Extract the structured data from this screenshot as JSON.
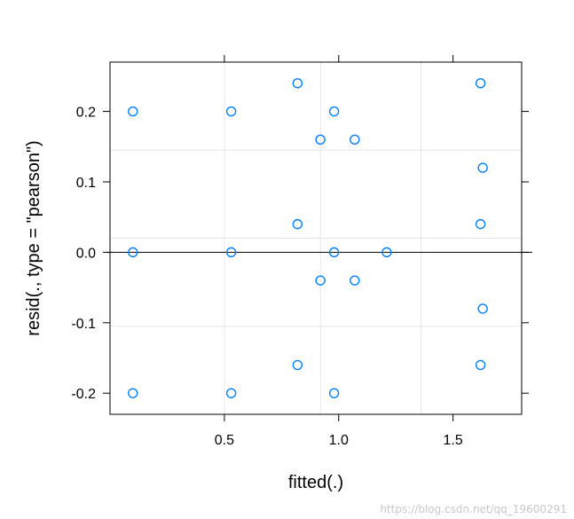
{
  "chart_data": {
    "type": "scatter",
    "title": "",
    "xlabel": "fitted(.)",
    "ylabel": "resid(., type = \"pearson\")",
    "xlim": [
      0.0,
      1.8
    ],
    "ylim": [
      -0.23,
      0.27
    ],
    "x_ticks": [
      {
        "value": 0.5,
        "label": "0.5"
      },
      {
        "value": 1.0,
        "label": "1.0"
      },
      {
        "value": 1.5,
        "label": "1.5"
      }
    ],
    "y_ticks": [
      {
        "value": -0.2,
        "label": "-0.2"
      },
      {
        "value": -0.1,
        "label": "-0.1"
      },
      {
        "value": 0.0,
        "label": "0.0"
      },
      {
        "value": 0.1,
        "label": "0.1"
      },
      {
        "value": 0.2,
        "label": "0.2"
      }
    ],
    "grid": true,
    "grid_x": [
      0.5,
      0.92,
      1.36
    ],
    "grid_y": [
      -0.105,
      0.02,
      0.145
    ],
    "reference_line_y": 0.0,
    "marker": "open-circle",
    "point_color": "#0080ff",
    "reference_line_color": "#000000",
    "grid_color": "#e6e6e6",
    "series": [
      {
        "points": [
          {
            "x": 0.1,
            "y": 0.2
          },
          {
            "x": 0.1,
            "y": 0.0
          },
          {
            "x": 0.1,
            "y": -0.2
          },
          {
            "x": 0.53,
            "y": 0.2
          },
          {
            "x": 0.53,
            "y": 0.0
          },
          {
            "x": 0.53,
            "y": -0.2
          },
          {
            "x": 0.82,
            "y": 0.24
          },
          {
            "x": 0.82,
            "y": 0.04
          },
          {
            "x": 0.82,
            "y": -0.16
          },
          {
            "x": 0.92,
            "y": 0.16
          },
          {
            "x": 0.92,
            "y": -0.04
          },
          {
            "x": 0.98,
            "y": 0.2
          },
          {
            "x": 0.98,
            "y": 0.0
          },
          {
            "x": 0.98,
            "y": -0.2
          },
          {
            "x": 1.07,
            "y": 0.16
          },
          {
            "x": 1.07,
            "y": -0.04
          },
          {
            "x": 1.21,
            "y": 0.0
          },
          {
            "x": 1.62,
            "y": 0.24
          },
          {
            "x": 1.62,
            "y": 0.04
          },
          {
            "x": 1.62,
            "y": -0.16
          },
          {
            "x": 1.63,
            "y": 0.12
          },
          {
            "x": 1.63,
            "y": -0.08
          }
        ]
      }
    ]
  },
  "watermark": "https://blog.csdn.net/qq_19600291"
}
